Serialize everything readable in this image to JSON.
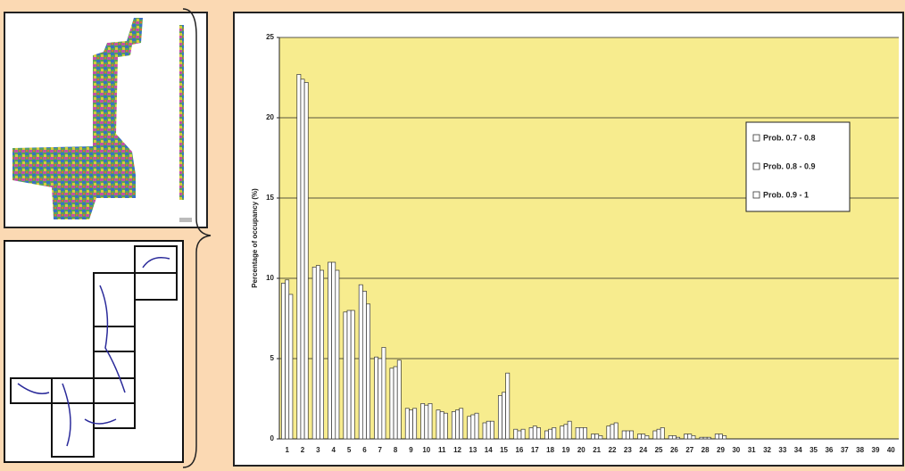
{
  "chart_data": {
    "type": "bar",
    "y_label": "Percentage of occupancy (%)",
    "categories": [
      "1",
      "2",
      "3",
      "4",
      "5",
      "6",
      "7",
      "8",
      "9",
      "10",
      "11",
      "12",
      "13",
      "14",
      "15",
      "16",
      "17",
      "18",
      "19",
      "20",
      "21",
      "22",
      "23",
      "24",
      "25",
      "26",
      "27",
      "28",
      "29",
      "30",
      "31",
      "32",
      "33",
      "34",
      "35",
      "36",
      "37",
      "38",
      "39",
      "40"
    ],
    "series": [
      {
        "name": "Prob. 0.7 - 0.8",
        "color": "#ffffff",
        "values": [
          9.7,
          22.7,
          10.7,
          11.0,
          7.9,
          9.6,
          5.1,
          4.4,
          1.9,
          2.2,
          1.8,
          1.7,
          1.4,
          1.0,
          2.7,
          0.6,
          0.7,
          0.5,
          0.8,
          0.7,
          0.3,
          0.8,
          0.5,
          0.3,
          0.5,
          0.2,
          0.3,
          0.1,
          0.3,
          0,
          0,
          0,
          0,
          0,
          0,
          0,
          0,
          0,
          0,
          0
        ]
      },
      {
        "name": "Prob. 0.8 - 0.9",
        "color": "#ffffff",
        "values": [
          9.9,
          22.4,
          10.8,
          11.0,
          8.0,
          9.2,
          5.0,
          4.5,
          1.8,
          2.1,
          1.7,
          1.8,
          1.5,
          1.1,
          2.9,
          0.5,
          0.8,
          0.6,
          0.9,
          0.7,
          0.3,
          0.9,
          0.5,
          0.3,
          0.6,
          0.2,
          0.3,
          0.1,
          0.3,
          0,
          0,
          0,
          0,
          0,
          0,
          0,
          0,
          0,
          0,
          0
        ]
      },
      {
        "name": "Prob. 0.9 - 1",
        "color": "#ffffff",
        "values": [
          9.0,
          22.2,
          10.5,
          10.5,
          8.0,
          8.4,
          5.7,
          4.9,
          1.9,
          2.2,
          1.6,
          1.9,
          1.6,
          1.1,
          4.1,
          0.6,
          0.7,
          0.7,
          1.1,
          0.7,
          0.2,
          1.0,
          0.5,
          0.2,
          0.7,
          0.1,
          0.2,
          0.1,
          0.2,
          0,
          0,
          0,
          0,
          0,
          0,
          0,
          0,
          0,
          0,
          0
        ]
      }
    ],
    "ylim": [
      0,
      25
    ],
    "yticks": [
      0,
      5,
      10,
      15,
      20,
      25
    ],
    "grid": true,
    "legend": "upper right"
  }
}
